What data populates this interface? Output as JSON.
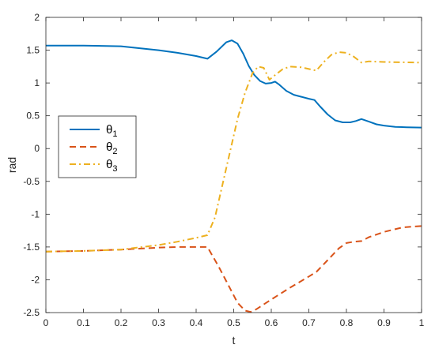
{
  "chart_data": {
    "type": "line",
    "xlabel": "t",
    "ylabel": "rad",
    "xlim": [
      0,
      1
    ],
    "ylim": [
      -2.5,
      2
    ],
    "xticks": [
      0,
      0.1,
      0.2,
      0.3,
      0.4,
      0.5,
      0.6,
      0.7,
      0.8,
      0.9,
      1
    ],
    "xtick_labels": [
      "0",
      "0.1",
      "0.2",
      "0.3",
      "0.4",
      "0.5",
      "0.6",
      "0.7",
      "0.8",
      "0.9",
      "1"
    ],
    "yticks": [
      -2.5,
      -2,
      -1.5,
      -1,
      -0.5,
      0,
      0.5,
      1,
      1.5,
      2
    ],
    "ytick_labels": [
      "-2.5",
      "-2",
      "-1.5",
      "-1",
      "-0.5",
      "0",
      "0.5",
      "1",
      "1.5",
      "2"
    ],
    "grid": false,
    "legend_position": "left-middle",
    "series": [
      {
        "name_base": "θ",
        "name_sub": "1",
        "color": "#0072BD",
        "style": "solid",
        "points": [
          [
            0,
            1.57
          ],
          [
            0.1,
            1.57
          ],
          [
            0.2,
            1.56
          ],
          [
            0.3,
            1.5
          ],
          [
            0.35,
            1.46
          ],
          [
            0.4,
            1.41
          ],
          [
            0.43,
            1.37
          ],
          [
            0.455,
            1.48
          ],
          [
            0.48,
            1.62
          ],
          [
            0.495,
            1.65
          ],
          [
            0.51,
            1.6
          ],
          [
            0.525,
            1.45
          ],
          [
            0.54,
            1.26
          ],
          [
            0.555,
            1.12
          ],
          [
            0.57,
            1.03
          ],
          [
            0.585,
            0.99
          ],
          [
            0.6,
            1.0
          ],
          [
            0.61,
            1.02
          ],
          [
            0.62,
            0.98
          ],
          [
            0.64,
            0.88
          ],
          [
            0.66,
            0.82
          ],
          [
            0.68,
            0.79
          ],
          [
            0.7,
            0.76
          ],
          [
            0.715,
            0.74
          ],
          [
            0.73,
            0.64
          ],
          [
            0.75,
            0.52
          ],
          [
            0.77,
            0.43
          ],
          [
            0.79,
            0.4
          ],
          [
            0.81,
            0.4
          ],
          [
            0.825,
            0.42
          ],
          [
            0.84,
            0.45
          ],
          [
            0.86,
            0.41
          ],
          [
            0.88,
            0.37
          ],
          [
            0.9,
            0.35
          ],
          [
            0.93,
            0.33
          ],
          [
            0.96,
            0.325
          ],
          [
            1.0,
            0.32
          ]
        ]
      },
      {
        "name_base": "θ",
        "name_sub": "2",
        "color": "#D95319",
        "style": "dashed",
        "points": [
          [
            0,
            -1.57
          ],
          [
            0.1,
            -1.56
          ],
          [
            0.2,
            -1.54
          ],
          [
            0.3,
            -1.51
          ],
          [
            0.35,
            -1.5
          ],
          [
            0.43,
            -1.5
          ],
          [
            0.46,
            -1.8
          ],
          [
            0.49,
            -2.13
          ],
          [
            0.51,
            -2.35
          ],
          [
            0.53,
            -2.47
          ],
          [
            0.545,
            -2.49
          ],
          [
            0.56,
            -2.45
          ],
          [
            0.6,
            -2.3
          ],
          [
            0.65,
            -2.12
          ],
          [
            0.7,
            -1.95
          ],
          [
            0.72,
            -1.88
          ],
          [
            0.75,
            -1.7
          ],
          [
            0.78,
            -1.52
          ],
          [
            0.8,
            -1.44
          ],
          [
            0.82,
            -1.42
          ],
          [
            0.84,
            -1.41
          ],
          [
            0.86,
            -1.35
          ],
          [
            0.9,
            -1.27
          ],
          [
            0.95,
            -1.2
          ],
          [
            1.0,
            -1.18
          ]
        ]
      },
      {
        "name_base": "θ",
        "name_sub": "3",
        "color": "#EDB120",
        "style": "dashdot",
        "points": [
          [
            0,
            -1.57
          ],
          [
            0.1,
            -1.56
          ],
          [
            0.2,
            -1.54
          ],
          [
            0.3,
            -1.47
          ],
          [
            0.35,
            -1.42
          ],
          [
            0.4,
            -1.36
          ],
          [
            0.43,
            -1.32
          ],
          [
            0.45,
            -1.05
          ],
          [
            0.47,
            -0.55
          ],
          [
            0.49,
            -0.05
          ],
          [
            0.51,
            0.45
          ],
          [
            0.53,
            0.85
          ],
          [
            0.55,
            1.15
          ],
          [
            0.565,
            1.25
          ],
          [
            0.58,
            1.23
          ],
          [
            0.595,
            1.05
          ],
          [
            0.61,
            1.12
          ],
          [
            0.63,
            1.21
          ],
          [
            0.65,
            1.25
          ],
          [
            0.68,
            1.24
          ],
          [
            0.71,
            1.2
          ],
          [
            0.72,
            1.19
          ],
          [
            0.74,
            1.32
          ],
          [
            0.76,
            1.43
          ],
          [
            0.78,
            1.47
          ],
          [
            0.8,
            1.46
          ],
          [
            0.82,
            1.4
          ],
          [
            0.84,
            1.31
          ],
          [
            0.86,
            1.33
          ],
          [
            0.9,
            1.32
          ],
          [
            1.0,
            1.31
          ]
        ]
      }
    ]
  }
}
